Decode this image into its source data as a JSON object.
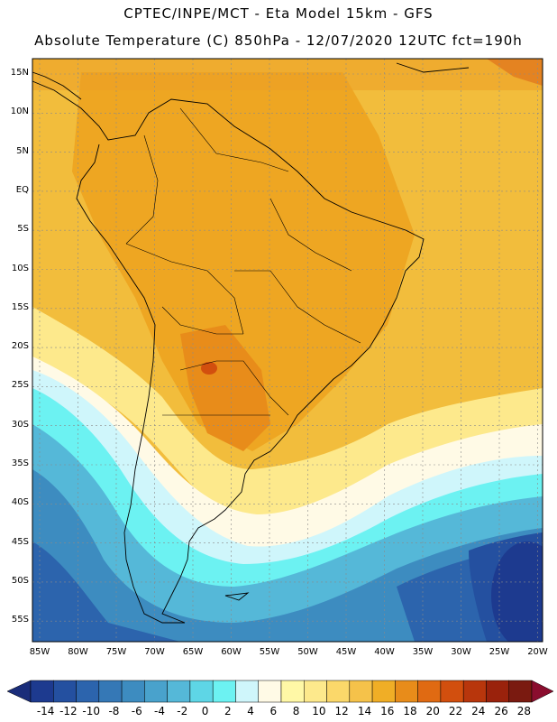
{
  "header": {
    "line1": "CPTEC/INPE/MCT -  Eta Model 15km - GFS",
    "line2": "Absolute Temperature (C) 850hPa - 12/07/2020 12UTC fct=190h"
  },
  "map": {
    "lat_labels": [
      "15N",
      "10N",
      "5N",
      "EQ",
      "5S",
      "10S",
      "15S",
      "20S",
      "25S",
      "30S",
      "35S",
      "40S",
      "45S",
      "50S",
      "55S"
    ],
    "lon_labels": [
      "85W",
      "80W",
      "75W",
      "70W",
      "65W",
      "60W",
      "55W",
      "50W",
      "45W",
      "40W",
      "35W",
      "30W",
      "25W",
      "20W"
    ]
  },
  "colorbar": {
    "labels": [
      "-14",
      "-12",
      "-10",
      "-8",
      "-6",
      "-4",
      "-2",
      "0",
      "2",
      "4",
      "6",
      "8",
      "10",
      "12",
      "14",
      "16",
      "18",
      "20",
      "22",
      "24",
      "26",
      "28"
    ],
    "colors": [
      "#1d3a8f",
      "#2450a0",
      "#2c64ad",
      "#3578b6",
      "#3d8cc0",
      "#49a2cc",
      "#55b8d8",
      "#5ed6e6",
      "#6cf2f2",
      "#cff6fb",
      "#fffae6",
      "#fff8a6",
      "#fde98c",
      "#fbd86a",
      "#f5c24a",
      "#f0ae26",
      "#e88c1a",
      "#e06a12",
      "#d24f0e",
      "#b8360c",
      "#9a220c",
      "#7a1a10"
    ],
    "under_color": "#1a2d7a",
    "over_color": "#8a0d2e"
  }
}
